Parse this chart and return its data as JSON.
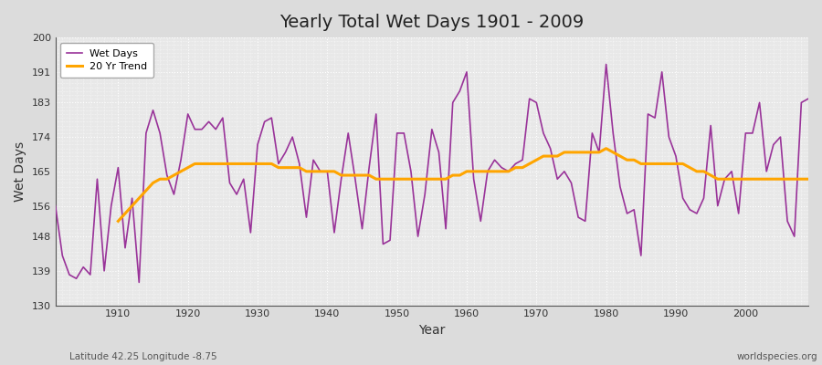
{
  "title": "Yearly Total Wet Days 1901 - 2009",
  "xlabel": "Year",
  "ylabel": "Wet Days",
  "subtitle_left": "Latitude 42.25 Longitude -8.75",
  "subtitle_right": "worldspecies.org",
  "ylim": [
    130,
    200
  ],
  "yticks": [
    130,
    139,
    148,
    156,
    165,
    174,
    183,
    191,
    200
  ],
  "xticks": [
    1910,
    1920,
    1930,
    1940,
    1950,
    1960,
    1970,
    1980,
    1990,
    2000
  ],
  "wet_days_color": "#993399",
  "trend_color": "#FFA500",
  "bg_color": "#DCDCDC",
  "plot_bg_color": "#E8E8E8",
  "years": [
    1901,
    1902,
    1903,
    1904,
    1905,
    1906,
    1907,
    1908,
    1909,
    1910,
    1911,
    1912,
    1913,
    1914,
    1915,
    1916,
    1917,
    1918,
    1919,
    1920,
    1921,
    1922,
    1923,
    1924,
    1925,
    1926,
    1927,
    1928,
    1929,
    1930,
    1931,
    1932,
    1933,
    1934,
    1935,
    1936,
    1937,
    1938,
    1939,
    1940,
    1941,
    1942,
    1943,
    1944,
    1945,
    1946,
    1947,
    1948,
    1949,
    1950,
    1951,
    1952,
    1953,
    1954,
    1955,
    1956,
    1957,
    1958,
    1959,
    1960,
    1961,
    1962,
    1963,
    1964,
    1965,
    1966,
    1967,
    1968,
    1969,
    1970,
    1971,
    1972,
    1973,
    1974,
    1975,
    1976,
    1977,
    1978,
    1979,
    1980,
    1981,
    1982,
    1983,
    1984,
    1985,
    1986,
    1987,
    1988,
    1989,
    1990,
    1991,
    1992,
    1993,
    1994,
    1995,
    1996,
    1997,
    1998,
    1999,
    2000,
    2001,
    2002,
    2003,
    2004,
    2005,
    2006,
    2007,
    2008,
    2009
  ],
  "wet_days": [
    156,
    143,
    138,
    137,
    140,
    138,
    163,
    139,
    156,
    166,
    145,
    158,
    136,
    175,
    181,
    175,
    164,
    159,
    168,
    180,
    176,
    176,
    178,
    176,
    179,
    162,
    159,
    163,
    149,
    172,
    178,
    179,
    167,
    170,
    174,
    167,
    153,
    168,
    165,
    165,
    149,
    163,
    175,
    163,
    150,
    166,
    180,
    146,
    147,
    175,
    175,
    165,
    148,
    159,
    176,
    170,
    150,
    183,
    186,
    191,
    163,
    152,
    165,
    168,
    166,
    165,
    167,
    168,
    184,
    183,
    175,
    171,
    163,
    165,
    162,
    153,
    152,
    175,
    170,
    193,
    175,
    161,
    154,
    155,
    143,
    180,
    179,
    191,
    174,
    169,
    158,
    155,
    154,
    158,
    177,
    156,
    163,
    165,
    154,
    175,
    175,
    183,
    165,
    172,
    174,
    152,
    148,
    183,
    184
  ],
  "trend": [
    null,
    null,
    null,
    null,
    null,
    null,
    null,
    null,
    null,
    152,
    154,
    156,
    158,
    160,
    162,
    163,
    163,
    164,
    165,
    166,
    167,
    167,
    167,
    167,
    167,
    167,
    167,
    167,
    167,
    167,
    167,
    167,
    166,
    166,
    166,
    166,
    165,
    165,
    165,
    165,
    165,
    164,
    164,
    164,
    164,
    164,
    163,
    163,
    163,
    163,
    163,
    163,
    163,
    163,
    163,
    163,
    163,
    164,
    164,
    165,
    165,
    165,
    165,
    165,
    165,
    165,
    166,
    166,
    167,
    168,
    169,
    169,
    169,
    170,
    170,
    170,
    170,
    170,
    170,
    171,
    170,
    169,
    168,
    168,
    167,
    167,
    167,
    167,
    167,
    167,
    167,
    166,
    165,
    165,
    164,
    163,
    163,
    163,
    163,
    163,
    163,
    163,
    163,
    163,
    163,
    163,
    163,
    163,
    163
  ]
}
